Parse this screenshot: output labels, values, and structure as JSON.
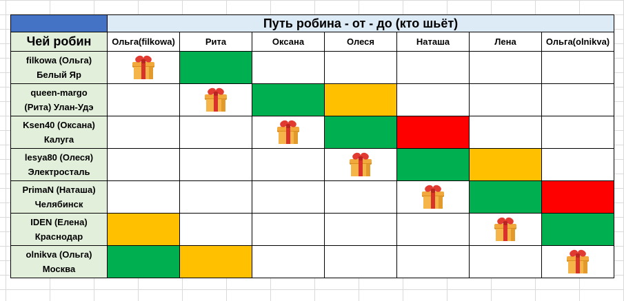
{
  "title": "Путь робина - от - до (кто шьёт)",
  "owner_header": "Чей робин",
  "columns": [
    "Ольга(filkowa)",
    "Рита",
    "Оксана",
    "Олеся",
    "Наташа",
    "Лена",
    "Ольга(olnikva)"
  ],
  "rows": [
    {
      "line1": "filkowa (Ольга)",
      "line2": "Белый Яр",
      "cells": [
        "gift",
        "green",
        "",
        "",
        "",
        "",
        ""
      ]
    },
    {
      "line1": "queen-margo",
      "line2": "(Рита) Улан-Удэ",
      "cells": [
        "",
        "gift",
        "green",
        "yellow",
        "",
        "",
        ""
      ]
    },
    {
      "line1": "Ksen40 (Оксана)",
      "line2": "Калуга",
      "cells": [
        "",
        "",
        "gift",
        "green",
        "red",
        "",
        ""
      ]
    },
    {
      "line1": "lesya80 (Олеся)",
      "line2": "Электросталь",
      "cells": [
        "",
        "",
        "",
        "gift",
        "green",
        "yellow",
        ""
      ]
    },
    {
      "line1": "PrimaN (Наташа)",
      "line2": "Челябинск",
      "cells": [
        "",
        "",
        "",
        "",
        "gift",
        "green",
        "red"
      ]
    },
    {
      "line1": "IDEN (Елена)",
      "line2": "Краснодар",
      "cells": [
        "yellow",
        "",
        "",
        "",
        "",
        "gift",
        "green"
      ]
    },
    {
      "line1": "olnikva (Ольга)",
      "line2": "Москва",
      "cells": [
        "green",
        "yellow",
        "",
        "",
        "",
        "",
        "gift"
      ]
    }
  ],
  "cell_icon": "gift-icon",
  "colors": {
    "header_blue": "#4472c4",
    "title_bg": "#ddebf7",
    "name_bg": "#e2efda",
    "green": "#00b050",
    "yellow": "#ffc000",
    "red": "#ff0000"
  }
}
